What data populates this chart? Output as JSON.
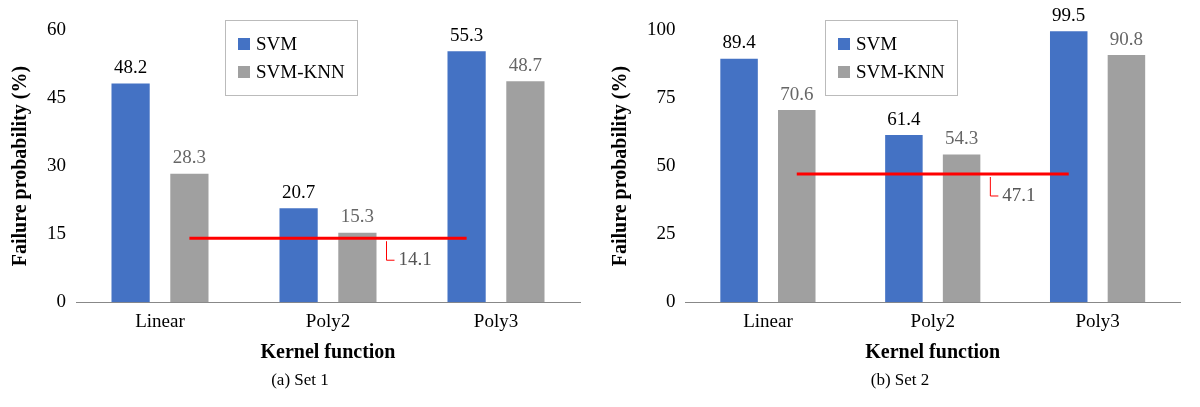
{
  "chart_data": [
    {
      "type": "bar",
      "xlabel": "Kernel function",
      "ylabel": "Failure probability (%)",
      "categories": [
        "Linear",
        "Poly2",
        "Poly3"
      ],
      "series": [
        {
          "name": "SVM",
          "color": "#4472c4",
          "values": [
            48.2,
            20.7,
            55.3
          ]
        },
        {
          "name": "SVM-KNN",
          "color": "#a0a0a0",
          "values": [
            28.3,
            15.3,
            48.7
          ]
        }
      ],
      "ylim": [
        0,
        60
      ],
      "yticks": [
        0,
        15,
        30,
        45,
        60
      ],
      "grid": false,
      "legend": "top",
      "data_labels": true,
      "ref_lines": [
        {
          "axis": "y",
          "value": 14.1,
          "label": "14.1",
          "color": "#ff0000"
        }
      ],
      "annotations": [
        "(a) Set 1"
      ]
    },
    {
      "type": "bar",
      "xlabel": "Kernel function",
      "ylabel": "Failure probability (%)",
      "categories": [
        "Linear",
        "Poly2",
        "Poly3"
      ],
      "series": [
        {
          "name": "SVM",
          "color": "#4472c4",
          "values": [
            89.4,
            61.4,
            99.5
          ]
        },
        {
          "name": "SVM-KNN",
          "color": "#a0a0a0",
          "values": [
            70.6,
            54.3,
            90.8
          ]
        }
      ],
      "ylim": [
        0,
        100
      ],
      "yticks": [
        0,
        25,
        50,
        75,
        100
      ],
      "grid": false,
      "legend": "top",
      "data_labels": true,
      "ref_lines": [
        {
          "axis": "y",
          "value": 47.1,
          "label": "47.1",
          "color": "#ff0000"
        }
      ],
      "annotations": [
        "(b) Set 2"
      ]
    }
  ]
}
